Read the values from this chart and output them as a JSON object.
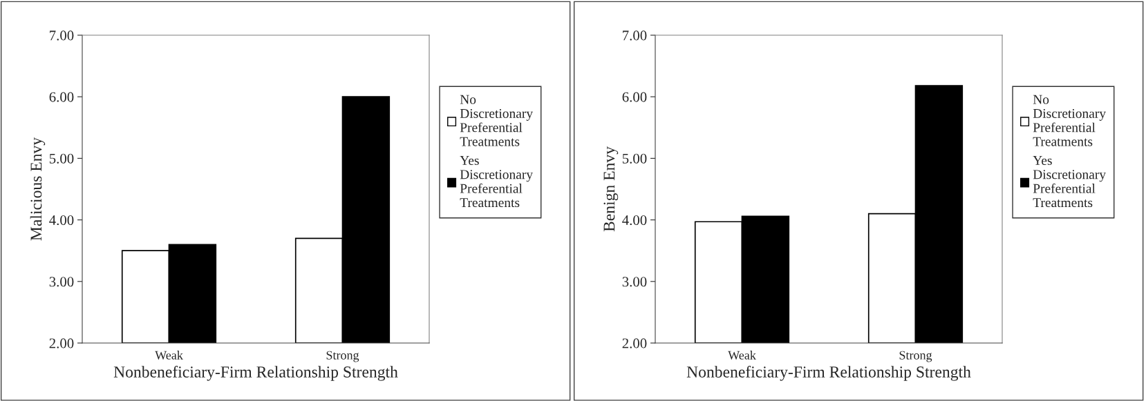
{
  "chart_data": [
    {
      "type": "bar",
      "ylabel": "Malicious Envy",
      "xlabel": "Nonbeneficiary-Firm Relationship Strength",
      "categories": [
        "Weak",
        "Strong"
      ],
      "ylim": [
        2,
        7
      ],
      "yticks": [
        {
          "value": 2,
          "label": "2.00"
        },
        {
          "value": 3,
          "label": "3.00"
        },
        {
          "value": 4,
          "label": "4.00"
        },
        {
          "value": 5,
          "label": "5.00"
        },
        {
          "value": 6,
          "label": "6.00"
        },
        {
          "value": 7,
          "label": "7.00"
        }
      ],
      "grid": false,
      "legend": "right",
      "series": [
        {
          "name": "No Discretionary Preferential Treatments",
          "color": "#ffffff",
          "values": [
            3.5,
            3.7
          ]
        },
        {
          "name": "Yes Discretionary Preferential Treatments",
          "color": "#000000",
          "values": [
            3.6,
            6.0
          ]
        }
      ]
    },
    {
      "type": "bar",
      "ylabel": "Benign Envy",
      "xlabel": "Nonbeneficiary-Firm Relationship Strength",
      "categories": [
        "Weak",
        "Strong"
      ],
      "ylim": [
        2,
        7
      ],
      "yticks": [
        {
          "value": 2,
          "label": "2.00"
        },
        {
          "value": 3,
          "label": "3.00"
        },
        {
          "value": 4,
          "label": "4.00"
        },
        {
          "value": 5,
          "label": "5.00"
        },
        {
          "value": 6,
          "label": "6.00"
        },
        {
          "value": 7,
          "label": "7.00"
        }
      ],
      "grid": false,
      "legend": "right",
      "series": [
        {
          "name": "No Discretionary Preferential Treatments",
          "color": "#ffffff",
          "values": [
            3.97,
            4.1
          ]
        },
        {
          "name": "Yes Discretionary Preferential Treatments",
          "color": "#000000",
          "values": [
            4.06,
            6.18
          ]
        }
      ]
    }
  ]
}
